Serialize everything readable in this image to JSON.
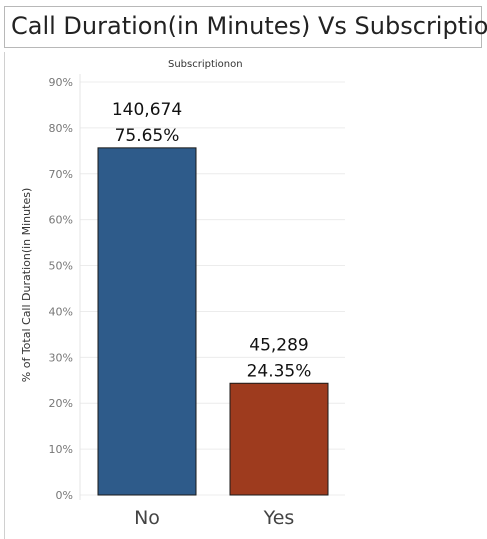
{
  "title": "Call Duration(in Minutes) Vs Subscription",
  "chart_data": {
    "type": "bar",
    "column_header": "Subscriptionon",
    "ylabel": "% of Total Call Duration(in Minutes)",
    "xlabel": "",
    "ylim": [
      0,
      90
    ],
    "y_ticks": [
      "0%",
      "10%",
      "20%",
      "30%",
      "40%",
      "50%",
      "60%",
      "70%",
      "80%",
      "90%"
    ],
    "categories": [
      "No",
      "Yes"
    ],
    "values": [
      75.65,
      24.35
    ],
    "absolute_values": [
      "140,674",
      "45,289"
    ],
    "percent_labels": [
      "75.65%",
      "24.35%"
    ],
    "colors": [
      "#2e5b8a",
      "#9e3b1e"
    ],
    "grid": true
  }
}
